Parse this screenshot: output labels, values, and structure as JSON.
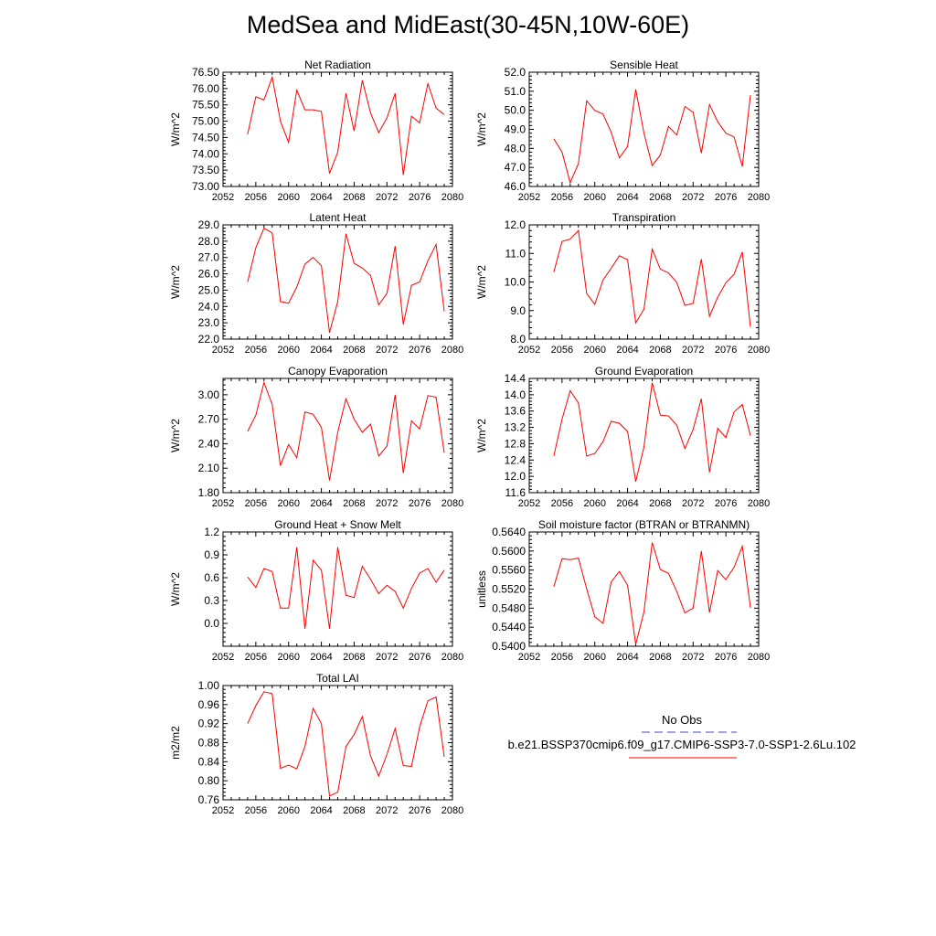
{
  "page": {
    "title": "MedSea and MidEast(30-45N,10W-60E)"
  },
  "legend": {
    "entries": [
      {
        "label": "No Obs",
        "color": "#4a4ab8",
        "dash": "dashed"
      },
      {
        "label": "b.e21.BSSP370cmip6.f09_g17.CMIP6-SSP3-7.0-SSP1-2.6Lu.102",
        "color": "#ff0000",
        "dash": "solid"
      }
    ]
  },
  "chart_data": [
    {
      "type": "line",
      "title": "Net Radiation",
      "ylabel": "W/m^2",
      "xlim": [
        2052,
        2080
      ],
      "xticks": [
        2052,
        2056,
        2060,
        2064,
        2068,
        2072,
        2076,
        2080
      ],
      "ylim": [
        73.0,
        76.5
      ],
      "yticks": [
        "73.00",
        "73.50",
        "74.00",
        "74.50",
        "75.00",
        "75.50",
        "76.00",
        "76.50"
      ],
      "line_color": "#ff0000",
      "x": [
        2055,
        2056,
        2057,
        2058,
        2059,
        2060,
        2061,
        2062,
        2063,
        2064,
        2065,
        2066,
        2067,
        2068,
        2069,
        2070,
        2071,
        2072,
        2073,
        2074,
        2075,
        2076,
        2077,
        2078,
        2079
      ],
      "values": [
        74.6,
        75.75,
        75.65,
        76.35,
        75.0,
        74.35,
        75.95,
        75.35,
        75.35,
        75.3,
        73.4,
        74.05,
        75.85,
        74.7,
        76.25,
        75.25,
        74.65,
        75.1,
        75.85,
        73.35,
        75.15,
        74.95,
        76.15,
        75.4,
        75.2
      ]
    },
    {
      "type": "line",
      "title": "Sensible Heat",
      "ylabel": "W/m^2",
      "xlim": [
        2052,
        2080
      ],
      "xticks": [
        2052,
        2056,
        2060,
        2064,
        2068,
        2072,
        2076,
        2080
      ],
      "ylim": [
        46.0,
        52.0
      ],
      "yticks": [
        "46.0",
        "47.0",
        "48.0",
        "49.0",
        "50.0",
        "51.0",
        "52.0"
      ],
      "line_color": "#ff0000",
      "x": [
        2055,
        2056,
        2057,
        2058,
        2059,
        2060,
        2061,
        2062,
        2063,
        2064,
        2065,
        2066,
        2067,
        2068,
        2069,
        2070,
        2071,
        2072,
        2073,
        2074,
        2075,
        2076,
        2077,
        2078,
        2079
      ],
      "values": [
        48.5,
        47.8,
        46.2,
        47.2,
        50.5,
        50.0,
        49.8,
        48.85,
        47.5,
        48.1,
        51.1,
        48.8,
        47.1,
        47.65,
        49.15,
        48.7,
        50.2,
        49.9,
        47.75,
        50.3,
        49.4,
        48.8,
        48.6,
        47.05,
        50.8
      ]
    },
    {
      "type": "line",
      "title": "Latent Heat",
      "ylabel": "W/m^2",
      "xlim": [
        2052,
        2080
      ],
      "xticks": [
        2052,
        2056,
        2060,
        2064,
        2068,
        2072,
        2076,
        2080
      ],
      "ylim": [
        22.0,
        29.0
      ],
      "yticks": [
        "22.0",
        "23.0",
        "24.0",
        "25.0",
        "26.0",
        "27.0",
        "28.0",
        "29.0"
      ],
      "line_color": "#ff0000",
      "x": [
        2055,
        2056,
        2057,
        2058,
        2059,
        2060,
        2061,
        2062,
        2063,
        2064,
        2065,
        2066,
        2067,
        2068,
        2069,
        2070,
        2071,
        2072,
        2073,
        2074,
        2075,
        2076,
        2077,
        2078,
        2079
      ],
      "values": [
        25.5,
        27.6,
        28.8,
        28.5,
        24.3,
        24.2,
        25.2,
        26.6,
        27.0,
        26.5,
        22.4,
        24.3,
        28.45,
        26.65,
        26.35,
        25.9,
        24.1,
        24.8,
        27.7,
        22.9,
        25.3,
        25.5,
        26.8,
        27.8,
        23.7
      ]
    },
    {
      "type": "line",
      "title": "Transpiration",
      "ylabel": "W/m^2",
      "xlim": [
        2052,
        2080
      ],
      "xticks": [
        2052,
        2056,
        2060,
        2064,
        2068,
        2072,
        2076,
        2080
      ],
      "ylim": [
        8.0,
        12.0
      ],
      "yticks": [
        "8.0",
        "9.0",
        "10.0",
        "11.0",
        "12.0"
      ],
      "line_color": "#ff0000",
      "x": [
        2055,
        2056,
        2057,
        2058,
        2059,
        2060,
        2061,
        2062,
        2063,
        2064,
        2065,
        2066,
        2067,
        2068,
        2069,
        2070,
        2071,
        2072,
        2073,
        2074,
        2075,
        2076,
        2077,
        2078,
        2079
      ],
      "values": [
        10.35,
        11.42,
        11.5,
        11.8,
        9.6,
        9.22,
        10.07,
        10.48,
        10.92,
        10.78,
        8.57,
        9.05,
        11.15,
        10.45,
        10.32,
        9.98,
        9.18,
        9.25,
        10.8,
        8.8,
        9.47,
        9.97,
        10.27,
        11.05,
        8.43
      ]
    },
    {
      "type": "line",
      "title": "Canopy Evaporation",
      "ylabel": "W/m^2",
      "xlim": [
        2052,
        2080
      ],
      "xticks": [
        2052,
        2056,
        2060,
        2064,
        2068,
        2072,
        2076,
        2080
      ],
      "ylim": [
        1.8,
        3.2
      ],
      "yticks": [
        "1.80",
        "2.10",
        "2.40",
        "2.70",
        "3.00"
      ],
      "line_color": "#ff0000",
      "x": [
        2055,
        2056,
        2057,
        2058,
        2059,
        2060,
        2061,
        2062,
        2063,
        2064,
        2065,
        2066,
        2067,
        2068,
        2069,
        2070,
        2071,
        2072,
        2073,
        2074,
        2075,
        2076,
        2077,
        2078,
        2079
      ],
      "values": [
        2.55,
        2.75,
        3.15,
        2.88,
        2.13,
        2.39,
        2.23,
        2.79,
        2.76,
        2.6,
        1.95,
        2.54,
        2.95,
        2.7,
        2.54,
        2.64,
        2.25,
        2.37,
        3.0,
        2.04,
        2.68,
        2.58,
        2.99,
        2.97,
        2.29
      ]
    },
    {
      "type": "line",
      "title": "Ground Evaporation",
      "ylabel": "W/m^2",
      "xlim": [
        2052,
        2080
      ],
      "xticks": [
        2052,
        2056,
        2060,
        2064,
        2068,
        2072,
        2076,
        2080
      ],
      "ylim": [
        11.6,
        14.4
      ],
      "yticks": [
        "11.6",
        "12.0",
        "12.4",
        "12.8",
        "13.2",
        "13.6",
        "14.0",
        "14.4"
      ],
      "line_color": "#ff0000",
      "x": [
        2055,
        2056,
        2057,
        2058,
        2059,
        2060,
        2061,
        2062,
        2063,
        2064,
        2065,
        2066,
        2067,
        2068,
        2069,
        2070,
        2071,
        2072,
        2073,
        2074,
        2075,
        2076,
        2077,
        2078,
        2079
      ],
      "values": [
        12.5,
        13.4,
        14.1,
        13.8,
        12.5,
        12.56,
        12.85,
        13.35,
        13.3,
        13.1,
        11.87,
        12.72,
        14.3,
        13.5,
        13.48,
        13.25,
        12.68,
        13.15,
        13.9,
        12.1,
        13.18,
        12.95,
        13.58,
        13.76,
        13.0
      ]
    },
    {
      "type": "line",
      "title": "Ground Heat + Snow Melt",
      "ylabel": "W/m^2",
      "xlim": [
        2052,
        2080
      ],
      "xticks": [
        2052,
        2056,
        2060,
        2064,
        2068,
        2072,
        2076,
        2080
      ],
      "ylim": [
        -0.3,
        1.2
      ],
      "yticks": [
        "0.0",
        "0.3",
        "0.6",
        "0.9",
        "1.2"
      ],
      "line_color": "#ff0000",
      "x": [
        2055,
        2056,
        2057,
        2058,
        2059,
        2060,
        2061,
        2062,
        2063,
        2064,
        2065,
        2066,
        2067,
        2068,
        2069,
        2070,
        2071,
        2072,
        2073,
        2074,
        2075,
        2076,
        2077,
        2078,
        2079
      ],
      "values": [
        0.61,
        0.47,
        0.72,
        0.68,
        0.2,
        0.2,
        1.0,
        -0.07,
        0.83,
        0.7,
        -0.07,
        1.0,
        0.37,
        0.34,
        0.75,
        0.58,
        0.39,
        0.5,
        0.42,
        0.2,
        0.46,
        0.66,
        0.72,
        0.54,
        0.7
      ]
    },
    {
      "type": "line",
      "title": "Soil moisture factor (BTRAN or BTRANMN)",
      "ylabel": "unitless",
      "xlim": [
        2052,
        2080
      ],
      "xticks": [
        2052,
        2056,
        2060,
        2064,
        2068,
        2072,
        2076,
        2080
      ],
      "ylim": [
        0.54,
        0.564
      ],
      "yticks": [
        "0.5400",
        "0.5440",
        "0.5480",
        "0.5520",
        "0.5560",
        "0.5600",
        "0.5640"
      ],
      "line_color": "#ff0000",
      "x": [
        2055,
        2056,
        2057,
        2058,
        2059,
        2060,
        2061,
        2062,
        2063,
        2064,
        2065,
        2066,
        2067,
        2068,
        2069,
        2070,
        2071,
        2072,
        2073,
        2074,
        2075,
        2076,
        2077,
        2078,
        2079
      ],
      "values": [
        0.5525,
        0.5584,
        0.5582,
        0.5585,
        0.5521,
        0.5462,
        0.5448,
        0.5535,
        0.5557,
        0.5528,
        0.5404,
        0.5472,
        0.5618,
        0.5561,
        0.5553,
        0.5515,
        0.547,
        0.548,
        0.56,
        0.5471,
        0.5559,
        0.554,
        0.5566,
        0.561,
        0.5481
      ]
    },
    {
      "type": "line",
      "title": "Total LAI",
      "ylabel": "m2/m2",
      "xlim": [
        2052,
        2080
      ],
      "xticks": [
        2052,
        2056,
        2060,
        2064,
        2068,
        2072,
        2076,
        2080
      ],
      "ylim": [
        0.76,
        1.0
      ],
      "yticks": [
        "0.76",
        "0.80",
        "0.84",
        "0.88",
        "0.92",
        "0.96",
        "1.00"
      ],
      "line_color": "#ff0000",
      "x": [
        2055,
        2056,
        2057,
        2058,
        2059,
        2060,
        2061,
        2062,
        2063,
        2064,
        2065,
        2066,
        2067,
        2068,
        2069,
        2070,
        2071,
        2072,
        2073,
        2074,
        2075,
        2076,
        2077,
        2078,
        2079
      ],
      "values": [
        0.92,
        0.958,
        0.987,
        0.983,
        0.826,
        0.833,
        0.825,
        0.872,
        0.952,
        0.92,
        0.768,
        0.776,
        0.872,
        0.897,
        0.935,
        0.852,
        0.81,
        0.855,
        0.91,
        0.832,
        0.83,
        0.913,
        0.968,
        0.976,
        0.85
      ]
    }
  ]
}
